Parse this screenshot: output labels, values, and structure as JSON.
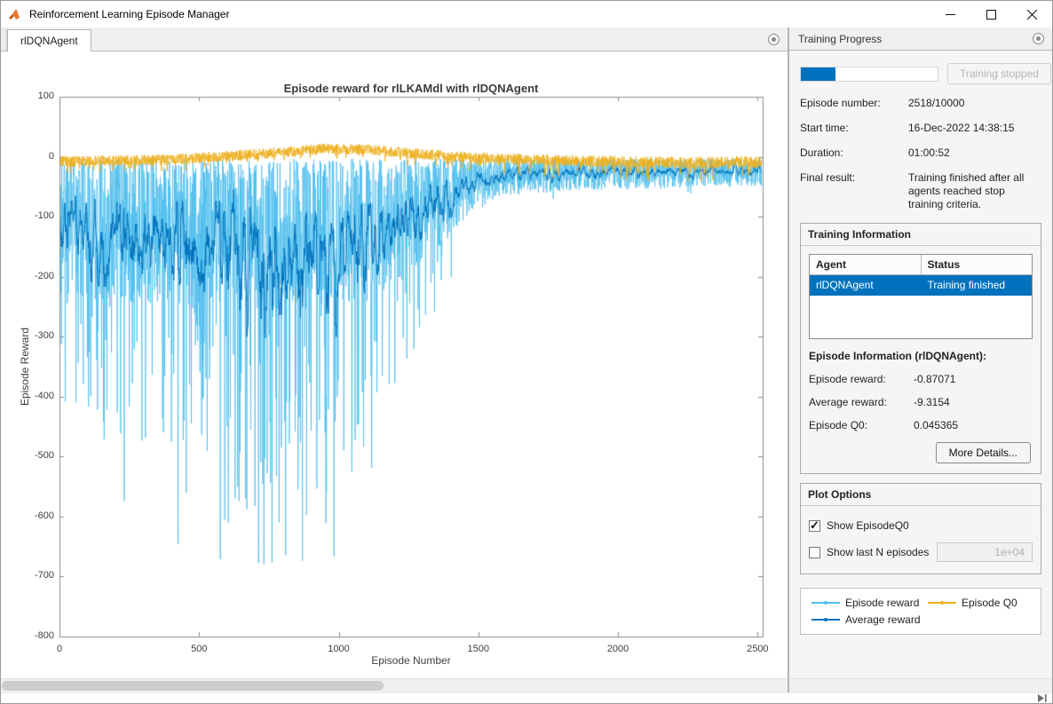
{
  "window": {
    "title": "Reinforcement Learning Episode Manager"
  },
  "tabs": {
    "active": "rlDQNAgent"
  },
  "right_panel": {
    "header": "Training Progress",
    "progress": {
      "value": 2518,
      "max": 10000,
      "button_label": "Training stopped",
      "accent_color": "#0072BD"
    },
    "info_rows": [
      {
        "label": "Episode number:",
        "value": "2518/10000"
      },
      {
        "label": "Start time:",
        "value": "16-Dec-2022 14:38:15"
      },
      {
        "label": "Duration:",
        "value": "01:00:52"
      },
      {
        "label": "Final result:",
        "value": "Training finished after all agents reached stop training criteria."
      }
    ],
    "training_information": {
      "title": "Training Information",
      "table": {
        "headers": [
          "Agent",
          "Status"
        ],
        "rows": [
          {
            "agent": "rlDQNAgent",
            "status": "Training finished",
            "selected": true
          }
        ]
      },
      "episode_info_title": "Episode Information (rlDQNAgent):",
      "episode_rows": [
        {
          "label": "Episode reward:",
          "value": "-0.87071"
        },
        {
          "label": "Average reward:",
          "value": "-9.3154"
        },
        {
          "label": "Episode Q0:",
          "value": "0.045365"
        }
      ],
      "more_details_label": "More Details..."
    },
    "plot_options": {
      "title": "Plot Options",
      "show_episode_q0": {
        "label": "Show EpisodeQ0",
        "checked": true
      },
      "show_last_n": {
        "label": "Show last N episodes",
        "checked": false,
        "value": "1e+04"
      }
    },
    "legend": [
      {
        "label": "Episode reward",
        "color": "#4DBEEE"
      },
      {
        "label": "Average reward",
        "color": "#0072BD"
      },
      {
        "label": "Episode Q0",
        "color": "#EDB120"
      }
    ]
  },
  "chart_data": {
    "type": "line",
    "title": "Episode reward for rlLKAMdl with rlDQNAgent",
    "xlabel": "Episode Number",
    "ylabel": "Episode Reward",
    "xlim": [
      0,
      2518
    ],
    "ylim": [
      -800,
      100
    ],
    "xticks": [
      0,
      500,
      1000,
      1500,
      2000,
      2500
    ],
    "yticks": [
      100,
      0,
      -100,
      -200,
      -300,
      -400,
      -500,
      -600,
      -700,
      -800
    ],
    "episodes": 2518,
    "grid": false,
    "legend_position": "right-panel",
    "series": [
      {
        "name": "Episode reward",
        "color": "#4DBEEE",
        "kind": "episode",
        "description": "Very noisy per-episode reward; deep spikes to -790 between episodes 550-900, band -5..-250 until ~1200, then improves to -5..-60 after episode 1500.",
        "envelope_keys": [
          [
            0,
            230,
            0.15,
            250
          ],
          [
            300,
            240,
            0.18,
            380
          ],
          [
            700,
            250,
            0.2,
            550
          ],
          [
            900,
            250,
            0.18,
            480
          ],
          [
            1100,
            240,
            0.15,
            380
          ],
          [
            1300,
            180,
            0.1,
            200
          ],
          [
            1450,
            100,
            0.05,
            80
          ],
          [
            1600,
            60,
            0.03,
            40
          ],
          [
            2000,
            50,
            0.02,
            30
          ],
          [
            2518,
            45,
            0.02,
            20
          ]
        ],
        "final_value": -0.87071
      },
      {
        "name": "Average reward",
        "color": "#0072BD",
        "kind": "moving_average",
        "window": 10,
        "description": "Running average of episode reward; oscillates -80..-300 early, rises steadily after episode 1200 toward ~-10 at end.",
        "final_value": -9.3154
      },
      {
        "name": "Episode Q0",
        "color": "#EDB120",
        "kind": "q0",
        "description": "Noisy band near zero; rises to ~+20 around episodes 900-1100, settles near -10 with downward spikes to ~-40 late.",
        "envelope_keys": [
          [
            0,
            -8,
            9,
            0.05,
            15
          ],
          [
            400,
            -5,
            9,
            0.05,
            15
          ],
          [
            700,
            4,
            9,
            0.05,
            15
          ],
          [
            950,
            13,
            9,
            0.04,
            12
          ],
          [
            1100,
            12,
            9,
            0.04,
            12
          ],
          [
            1300,
            4,
            9,
            0.05,
            15
          ],
          [
            1500,
            -2,
            9,
            0.06,
            20
          ],
          [
            1800,
            -6,
            9,
            0.06,
            25
          ],
          [
            2200,
            -10,
            10,
            0.06,
            28
          ],
          [
            2518,
            -9,
            10,
            0.06,
            25
          ]
        ],
        "final_value": 0.045365
      }
    ]
  }
}
